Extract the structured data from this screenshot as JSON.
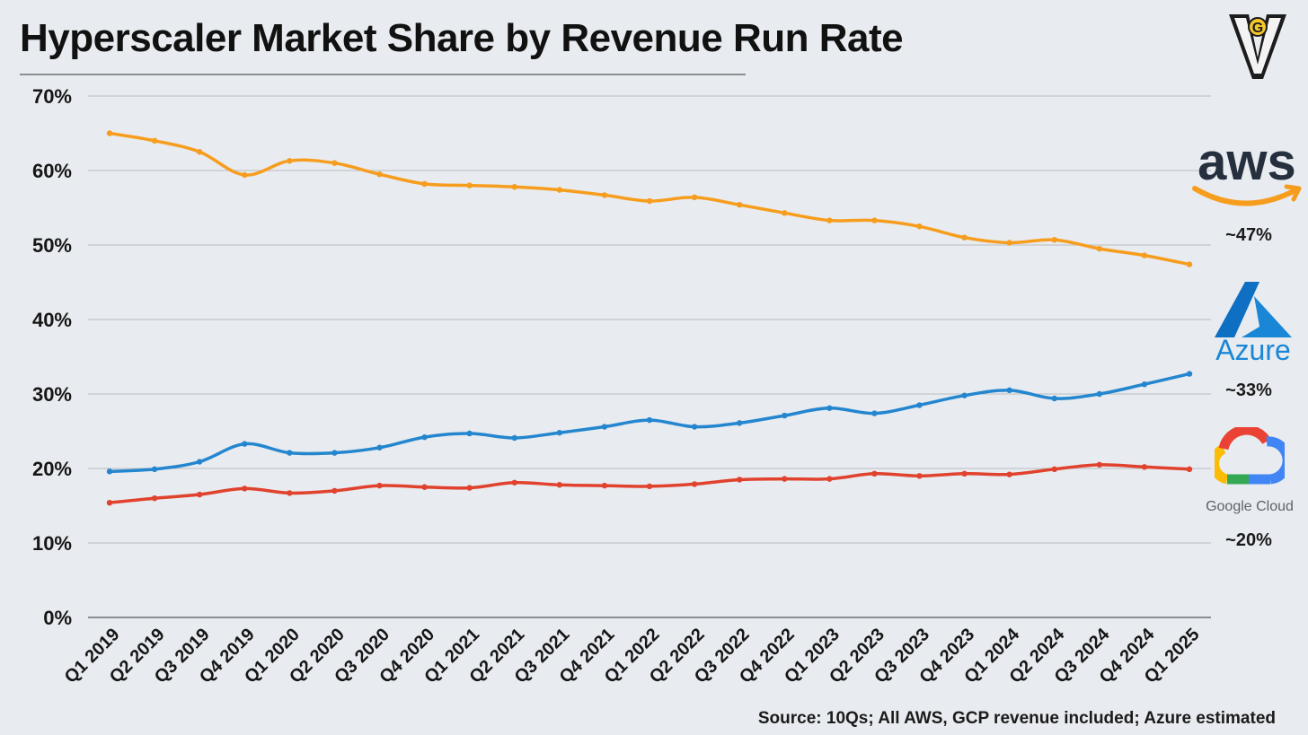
{
  "header": {
    "title": "Hyperscaler Market Share by Revenue Run Rate"
  },
  "brands": {
    "aws": {
      "logo_text": "aws",
      "share_label": "~47%",
      "color": "#f79d1e"
    },
    "azure": {
      "logo_text": "Azure",
      "share_label": "~33%",
      "color": "#1a87d6"
    },
    "google": {
      "logo_text": "Google Cloud",
      "share_label": "~20%",
      "color": "#e0422e"
    }
  },
  "footer": {
    "source": "Source: 10Qs; All AWS, GCP revenue included; Azure estimated"
  },
  "chart_data": {
    "type": "line",
    "title": "Hyperscaler Market Share by Revenue Run Rate",
    "xlabel": "",
    "ylabel": "",
    "ylim": [
      0,
      70
    ],
    "y_ticks": [
      "0%",
      "10%",
      "20%",
      "30%",
      "40%",
      "50%",
      "60%",
      "70%"
    ],
    "grid": true,
    "categories": [
      "Q1 2019",
      "Q2 2019",
      "Q3 2019",
      "Q4 2019",
      "Q1 2020",
      "Q2 2020",
      "Q3 2020",
      "Q4 2020",
      "Q1 2021",
      "Q2 2021",
      "Q3 2021",
      "Q4 2021",
      "Q1 2022",
      "Q2 2022",
      "Q3 2022",
      "Q4 2022",
      "Q1 2023",
      "Q2 2023",
      "Q3 2023",
      "Q4 2023",
      "Q1 2024",
      "Q2 2024",
      "Q3 2024",
      "Q4 2024",
      "Q1 2025"
    ],
    "series": [
      {
        "color": "#f79d1e",
        "values": [
          65.0,
          64.0,
          62.5,
          59.4,
          61.3,
          61.0,
          59.5,
          58.2,
          58.0,
          57.8,
          57.4,
          56.7,
          55.9,
          56.4,
          55.4,
          54.3,
          53.3,
          53.3,
          52.5,
          51.0,
          50.3,
          50.7,
          49.5,
          48.6,
          47.4
        ]
      },
      {
        "color": "#2486cf",
        "values": [
          19.6,
          19.9,
          20.9,
          23.3,
          22.1,
          22.1,
          22.8,
          24.2,
          24.7,
          24.1,
          24.8,
          25.6,
          26.5,
          25.6,
          26.1,
          27.1,
          28.1,
          27.4,
          28.5,
          29.8,
          30.5,
          29.4,
          30.0,
          31.3,
          32.7
        ]
      },
      {
        "color": "#e0422e",
        "values": [
          15.4,
          16.0,
          16.5,
          17.3,
          16.7,
          17.0,
          17.7,
          17.5,
          17.4,
          18.1,
          17.8,
          17.7,
          17.6,
          17.9,
          18.5,
          18.6,
          18.6,
          19.3,
          19.0,
          19.3,
          19.2,
          19.9,
          20.5,
          20.2,
          19.9
        ]
      }
    ]
  }
}
